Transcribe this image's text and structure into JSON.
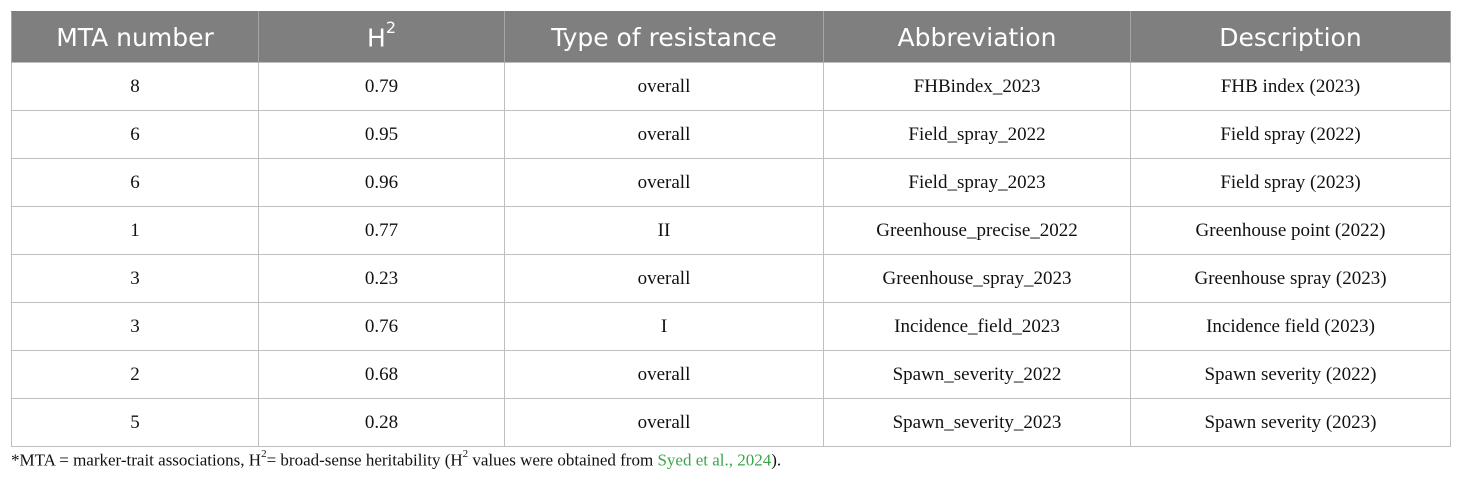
{
  "table": {
    "headers": {
      "mta": "MTA number",
      "h_base": "H",
      "h_sup": "2",
      "type": "Type of resistance",
      "abbr": "Abbreviation",
      "desc": "Description"
    },
    "rows": [
      {
        "mta": "8",
        "h2": "0.79",
        "type": "overall",
        "abbr": "FHBindex_2023",
        "desc": "FHB index (2023)"
      },
      {
        "mta": "6",
        "h2": "0.95",
        "type": "overall",
        "abbr": "Field_spray_2022",
        "desc": "Field spray (2022)"
      },
      {
        "mta": "6",
        "h2": "0.96",
        "type": "overall",
        "abbr": "Field_spray_2023",
        "desc": "Field spray (2023)"
      },
      {
        "mta": "1",
        "h2": "0.77",
        "type": "II",
        "abbr": "Greenhouse_precise_2022",
        "desc": "Greenhouse point (2022)"
      },
      {
        "mta": "3",
        "h2": "0.23",
        "type": "overall",
        "abbr": "Greenhouse_spray_2023",
        "desc": "Greenhouse spray (2023)"
      },
      {
        "mta": "3",
        "h2": "0.76",
        "type": "I",
        "abbr": "Incidence_field_2023",
        "desc": "Incidence field (2023)"
      },
      {
        "mta": "2",
        "h2": "0.68",
        "type": "overall",
        "abbr": "Spawn_severity_2022",
        "desc": "Spawn severity (2022)"
      },
      {
        "mta": "5",
        "h2": "0.28",
        "type": "overall",
        "abbr": "Spawn_severity_2023",
        "desc": "Spawn severity (2023)"
      }
    ]
  },
  "footnote": {
    "part1": "*MTA = marker-trait associations, H",
    "sup1": "2",
    "part2": "= broad-sense heritability (H",
    "sup2": "2",
    "part3": " values were obtained from ",
    "ref": "Syed et al., 2024",
    "part4": ")."
  }
}
